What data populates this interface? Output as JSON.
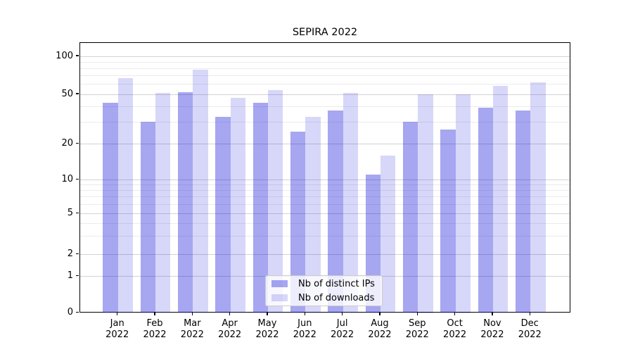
{
  "figure": {
    "title": "SEPIRA 2022"
  },
  "colors": {
    "background": "#ffffff",
    "axis": "#000000",
    "grid_major": "#d3d3d3",
    "grid_minor": "#ebebeb",
    "legend_border": "#cccccc",
    "legend_background": "rgba(255,255,255,0.8)",
    "bar_distinct_ips": "rgba(0,0,215,0.35)",
    "bar_downloads": "rgba(0,0,215,0.155)"
  },
  "chart_data": {
    "type": "bar",
    "title": "SEPIRA 2022",
    "categories": [
      "Jan 2022",
      "Feb 2022",
      "Mar 2022",
      "Apr 2022",
      "May 2022",
      "Jun 2022",
      "Jul 2022",
      "Aug 2022",
      "Sep 2022",
      "Oct 2022",
      "Nov 2022",
      "Dec 2022"
    ],
    "series": [
      {
        "name": "Nb of distinct IPs",
        "color": "rgba(0,0,215,0.35)",
        "values": [
          43,
          30,
          52,
          33,
          43,
          25,
          37,
          11,
          30,
          26,
          39,
          37
        ]
      },
      {
        "name": "Nb of downloads",
        "color": "rgba(0,0,215,0.155)",
        "values": [
          67,
          51,
          78,
          47,
          54,
          33,
          51,
          16,
          50,
          50,
          58,
          62
        ]
      }
    ],
    "xlabel": "",
    "ylabel": "",
    "yscale": "symlog",
    "ylim": [
      0,
      100
    ],
    "yticks": [
      100,
      50,
      20,
      10,
      5,
      2,
      1,
      0
    ],
    "minor_gridline_values": [
      3,
      4,
      6,
      7,
      8,
      9,
      30,
      40,
      60,
      70,
      80,
      90
    ],
    "grid": "both",
    "legend_position": "lower center"
  }
}
